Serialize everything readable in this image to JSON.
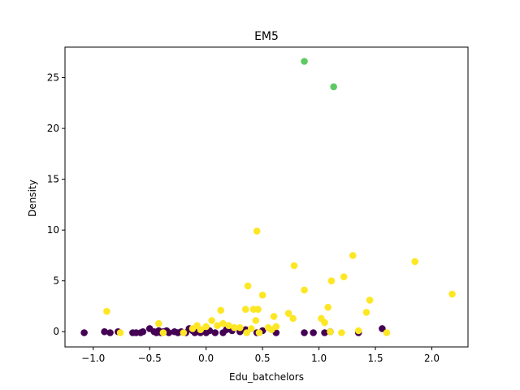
{
  "chart_data": {
    "type": "scatter",
    "title": "EM5",
    "xlabel": "Edu_batchelors",
    "ylabel": "Density",
    "xlim": [
      -1.25,
      2.32
    ],
    "ylim": [
      -1.5,
      28.0
    ],
    "xticks": [
      -1.0,
      -0.5,
      0.0,
      0.5,
      1.0,
      1.5,
      2.0
    ],
    "xtick_labels": [
      "−1.0",
      "−0.5",
      "0.0",
      "0.5",
      "1.0",
      "1.5",
      "2.0"
    ],
    "yticks": [
      0,
      5,
      10,
      15,
      20,
      25
    ],
    "ytick_labels": [
      "0",
      "5",
      "10",
      "15",
      "20",
      "25"
    ],
    "grid": false,
    "legend": "none",
    "series": [
      {
        "color": "#440154",
        "points": [
          [
            -1.08,
            -0.1
          ],
          [
            -0.9,
            0.0
          ],
          [
            -0.85,
            -0.1
          ],
          [
            -0.78,
            0.0
          ],
          [
            -0.65,
            -0.1
          ],
          [
            -0.62,
            -0.1
          ],
          [
            -0.58,
            -0.1
          ],
          [
            -0.56,
            0.0
          ],
          [
            -0.5,
            0.3
          ],
          [
            -0.46,
            0.0
          ],
          [
            -0.44,
            -0.1
          ],
          [
            -0.42,
            0.1
          ],
          [
            -0.4,
            -0.1
          ],
          [
            -0.38,
            0.0
          ],
          [
            -0.35,
            0.1
          ],
          [
            -0.33,
            -0.1
          ],
          [
            -0.28,
            0.0
          ],
          [
            -0.25,
            -0.1
          ],
          [
            -0.22,
            0.0
          ],
          [
            -0.18,
            -0.1
          ],
          [
            -0.15,
            0.3
          ],
          [
            -0.12,
            0.1
          ],
          [
            -0.1,
            -0.1
          ],
          [
            -0.07,
            0.0
          ],
          [
            -0.05,
            -0.1
          ],
          [
            0.0,
            -0.1
          ],
          [
            0.03,
            0.1
          ],
          [
            0.08,
            -0.1
          ],
          [
            0.15,
            -0.1
          ],
          [
            0.18,
            0.2
          ],
          [
            0.23,
            0.1
          ],
          [
            0.3,
            0.0
          ],
          [
            0.35,
            0.2
          ],
          [
            0.45,
            -0.1
          ],
          [
            0.5,
            0.1
          ],
          [
            0.62,
            -0.1
          ],
          [
            0.87,
            -0.1
          ],
          [
            0.95,
            -0.1
          ],
          [
            1.05,
            -0.1
          ],
          [
            1.1,
            0.0
          ],
          [
            1.35,
            -0.1
          ],
          [
            1.56,
            0.3
          ]
        ]
      },
      {
        "color": "#fde725",
        "points": [
          [
            -0.88,
            2.0
          ],
          [
            -0.76,
            -0.1
          ],
          [
            -0.42,
            0.8
          ],
          [
            -0.38,
            -0.1
          ],
          [
            -0.2,
            -0.1
          ],
          [
            -0.12,
            0.3
          ],
          [
            -0.08,
            0.6
          ],
          [
            -0.05,
            0.2
          ],
          [
            0.0,
            0.5
          ],
          [
            0.05,
            1.1
          ],
          [
            0.1,
            0.6
          ],
          [
            0.13,
            2.1
          ],
          [
            0.15,
            0.8
          ],
          [
            0.2,
            0.6
          ],
          [
            0.25,
            0.4
          ],
          [
            0.3,
            0.4
          ],
          [
            0.35,
            2.2
          ],
          [
            0.36,
            -0.1
          ],
          [
            0.37,
            4.5
          ],
          [
            0.4,
            0.3
          ],
          [
            0.42,
            2.2
          ],
          [
            0.44,
            1.1
          ],
          [
            0.45,
            9.9
          ],
          [
            0.46,
            2.2
          ],
          [
            0.47,
            -0.1
          ],
          [
            0.5,
            3.6
          ],
          [
            0.55,
            0.4
          ],
          [
            0.58,
            0.2
          ],
          [
            0.6,
            1.5
          ],
          [
            0.62,
            0.5
          ],
          [
            0.73,
            1.8
          ],
          [
            0.77,
            1.3
          ],
          [
            0.78,
            6.5
          ],
          [
            0.87,
            4.1
          ],
          [
            1.02,
            1.3
          ],
          [
            1.05,
            0.9
          ],
          [
            1.08,
            2.4
          ],
          [
            1.1,
            0.0
          ],
          [
            1.11,
            5.0
          ],
          [
            1.2,
            -0.1
          ],
          [
            1.22,
            5.4
          ],
          [
            1.3,
            7.5
          ],
          [
            1.35,
            0.1
          ],
          [
            1.42,
            1.9
          ],
          [
            1.45,
            3.1
          ],
          [
            1.6,
            -0.1
          ],
          [
            1.85,
            6.9
          ],
          [
            2.18,
            3.7
          ]
        ]
      },
      {
        "color": "#5ec962",
        "points": [
          [
            0.87,
            26.6
          ],
          [
            1.13,
            24.1
          ]
        ]
      }
    ]
  }
}
